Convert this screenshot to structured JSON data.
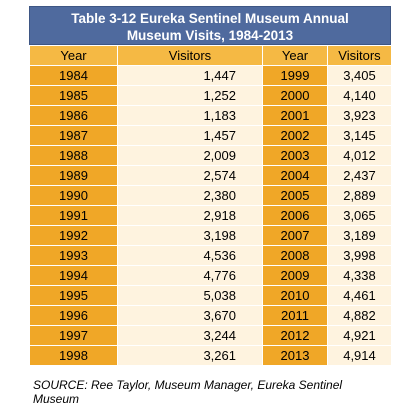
{
  "title_line1": "Table 3-12 Eureka Sentinel Museum Annual",
  "title_line2": "Museum Visits, 1984-2013",
  "headers": [
    "Year",
    "Visitors",
    "Year",
    "Visitors"
  ],
  "rows": [
    [
      "1984",
      "1,447",
      "1999",
      "3,405"
    ],
    [
      "1985",
      "1,252",
      "2000",
      "4,140"
    ],
    [
      "1986",
      "1,183",
      "2001",
      "3,923"
    ],
    [
      "1987",
      "1,457",
      "2002",
      "3,145"
    ],
    [
      "1988",
      "2,009",
      "2003",
      "4,012"
    ],
    [
      "1989",
      "2,574",
      "2004",
      "2,437"
    ],
    [
      "1990",
      "2,380",
      "2005",
      "2,889"
    ],
    [
      "1991",
      "2,918",
      "2006",
      "3,065"
    ],
    [
      "1992",
      "3,198",
      "2007",
      "3,189"
    ],
    [
      "1993",
      "4,536",
      "2008",
      "3,998"
    ],
    [
      "1994",
      "4,776",
      "2009",
      "4,338"
    ],
    [
      "1995",
      "5,038",
      "2010",
      "4,461"
    ],
    [
      "1996",
      "3,670",
      "2011",
      "4,882"
    ],
    [
      "1997",
      "3,244",
      "2012",
      "4,921"
    ],
    [
      "1998",
      "3,261",
      "2013",
      "4,914"
    ]
  ],
  "source_line1": "SOURCE: Ree Taylor, Museum Manager, Eureka Sentinel",
  "source_line2": "Museum"
}
